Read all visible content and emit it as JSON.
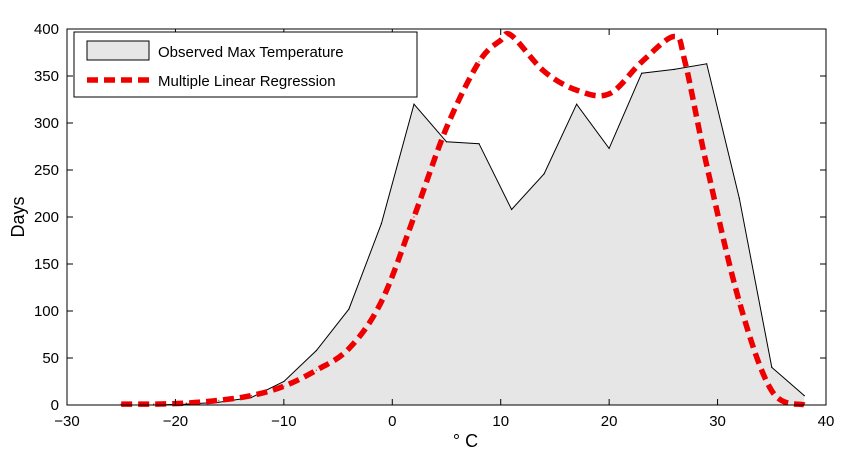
{
  "chart_data": {
    "type": "area",
    "xlabel": "° C",
    "ylabel": "Days",
    "xlim": [
      -30,
      40
    ],
    "ylim": [
      0,
      400
    ],
    "xticks": [
      -30,
      -20,
      -10,
      0,
      10,
      20,
      30,
      40
    ],
    "yticks": [
      0,
      50,
      100,
      150,
      200,
      250,
      300,
      350,
      400
    ],
    "x_tick_labels": [
      "−30",
      "−20",
      "−10",
      "0",
      "10",
      "20",
      "30",
      "40"
    ],
    "y_tick_labels": [
      "0",
      "50",
      "100",
      "150",
      "200",
      "250",
      "300",
      "350",
      "400"
    ],
    "grid": false,
    "legend_position": "top-left",
    "series": [
      {
        "name": "Observed Max Temperature",
        "type": "area",
        "color": "#e6e6e6",
        "edge_color": "#000000",
        "x": [
          -25,
          -22,
          -19,
          -16,
          -13,
          -10,
          -7,
          -4,
          -1,
          2,
          5,
          8,
          11,
          14,
          17,
          20,
          23,
          26,
          29,
          32,
          35,
          38
        ],
        "y": [
          0,
          0,
          1,
          3,
          8,
          25,
          58,
          102,
          193,
          320,
          280,
          278,
          208,
          246,
          320,
          273,
          353,
          357,
          363,
          220,
          40,
          10
        ]
      },
      {
        "name": "Multiple Linear Regression",
        "type": "line",
        "color": "#ee0000",
        "style": "dashed",
        "x": [
          -25,
          -22,
          -19,
          -16,
          -13,
          -10,
          -7,
          -4,
          -1,
          2,
          5,
          8,
          10,
          11,
          14,
          17,
          20,
          23,
          26,
          27,
          29,
          32,
          35,
          38
        ],
        "y": [
          1,
          1,
          2,
          5,
          10,
          20,
          37,
          60,
          110,
          200,
          295,
          365,
          388,
          393,
          355,
          335,
          331,
          365,
          392,
          365,
          255,
          110,
          15,
          0
        ]
      }
    ]
  }
}
